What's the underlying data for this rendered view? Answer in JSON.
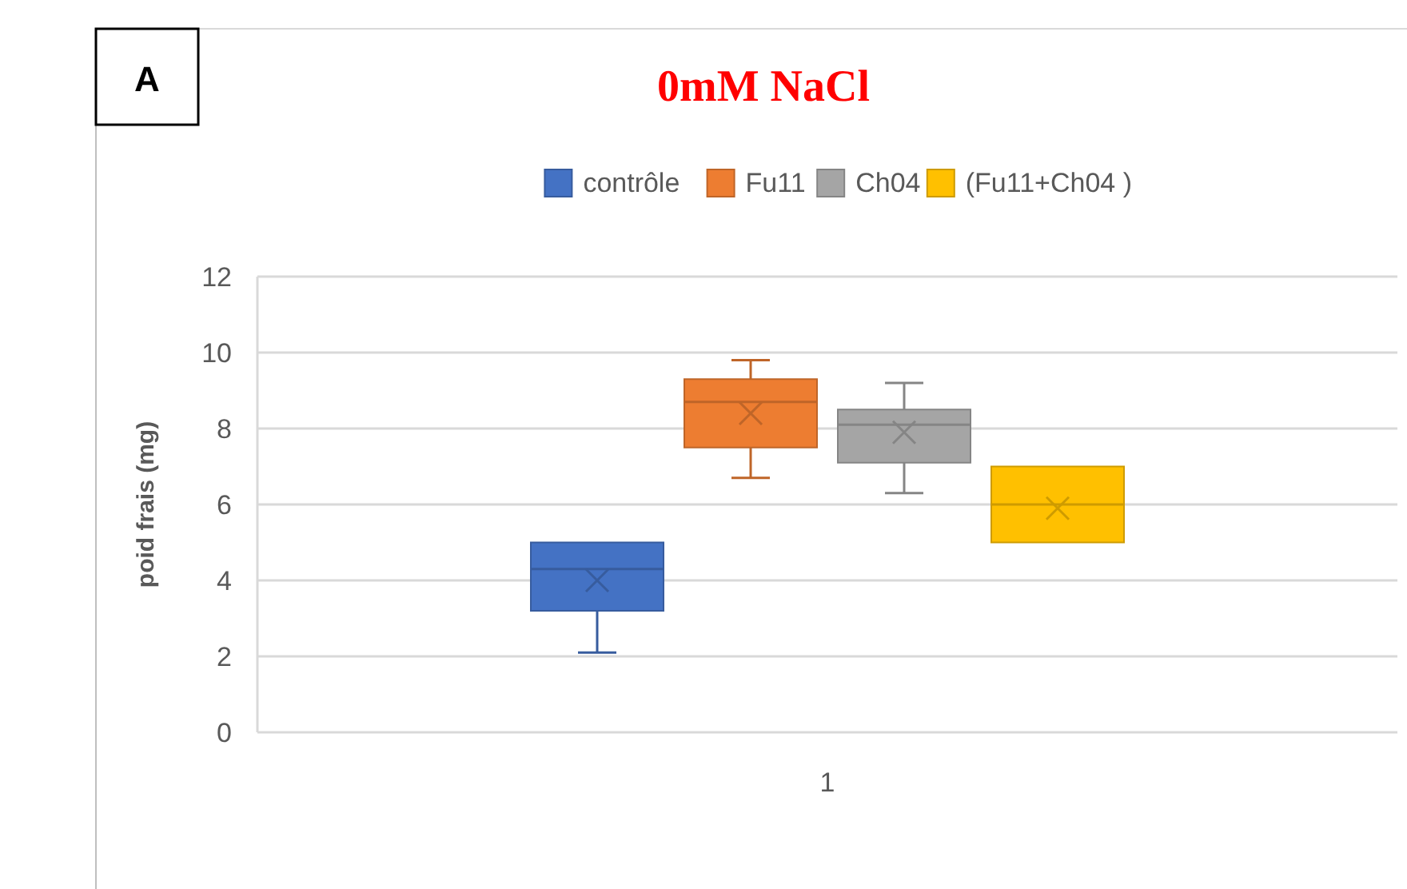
{
  "chart_data": {
    "type": "box",
    "title": "0mM NaCl",
    "ylabel": "poid frais (mg)",
    "annotations": [
      "A"
    ],
    "categories": [
      "1"
    ],
    "ylim": [
      0,
      12
    ],
    "yticks": [
      0,
      2,
      4,
      6,
      8,
      10,
      12
    ],
    "grid": "y",
    "legend": "top",
    "series": [
      {
        "name": "contrôle",
        "color": "#4472c4",
        "boxes": [
          {
            "low": 2.1,
            "q1": 3.2,
            "median": 4.3,
            "q3": 5.0,
            "high": 5.0,
            "mean": 4.0
          }
        ]
      },
      {
        "name": "Fu11",
        "color": "#ed7d31",
        "boxes": [
          {
            "low": 6.7,
            "q1": 7.5,
            "median": 8.7,
            "q3": 9.3,
            "high": 9.8,
            "mean": 8.4
          }
        ]
      },
      {
        "name": "Ch04",
        "color": "#a5a5a5",
        "boxes": [
          {
            "low": 6.3,
            "q1": 7.1,
            "median": 8.1,
            "q3": 8.5,
            "high": 9.2,
            "mean": 7.9
          }
        ]
      },
      {
        "name": "(Fu11+Ch04 )",
        "color": "#ffc000",
        "boxes": [
          {
            "low": 5.0,
            "q1": 5.0,
            "median": 6.0,
            "q3": 7.0,
            "high": 7.0,
            "mean": 5.9
          }
        ]
      }
    ]
  }
}
